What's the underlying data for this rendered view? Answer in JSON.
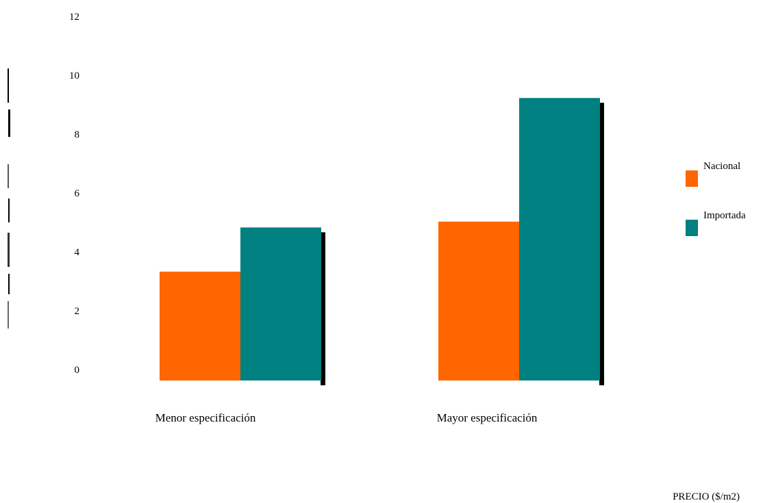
{
  "chart_data": {
    "type": "bar",
    "categories": [
      "Menor especificación",
      "Mayor especificación"
    ],
    "series": [
      {
        "name": "Nacional",
        "values": [
          3.7,
          5.4
        ],
        "color": "#FF6600"
      },
      {
        "name": "Importada",
        "values": [
          5.2,
          9.6
        ],
        "color": "#008080"
      }
    ],
    "yticks": [
      "0",
      "2",
      "4",
      "6",
      "8",
      "10",
      "12"
    ],
    "ylim": [
      0,
      12
    ],
    "xlabel": "PRECIO ($/m2)",
    "ylabel": "",
    "title": "",
    "legend_position": "right",
    "grid": false,
    "bar_shadow_color": "#000000"
  }
}
